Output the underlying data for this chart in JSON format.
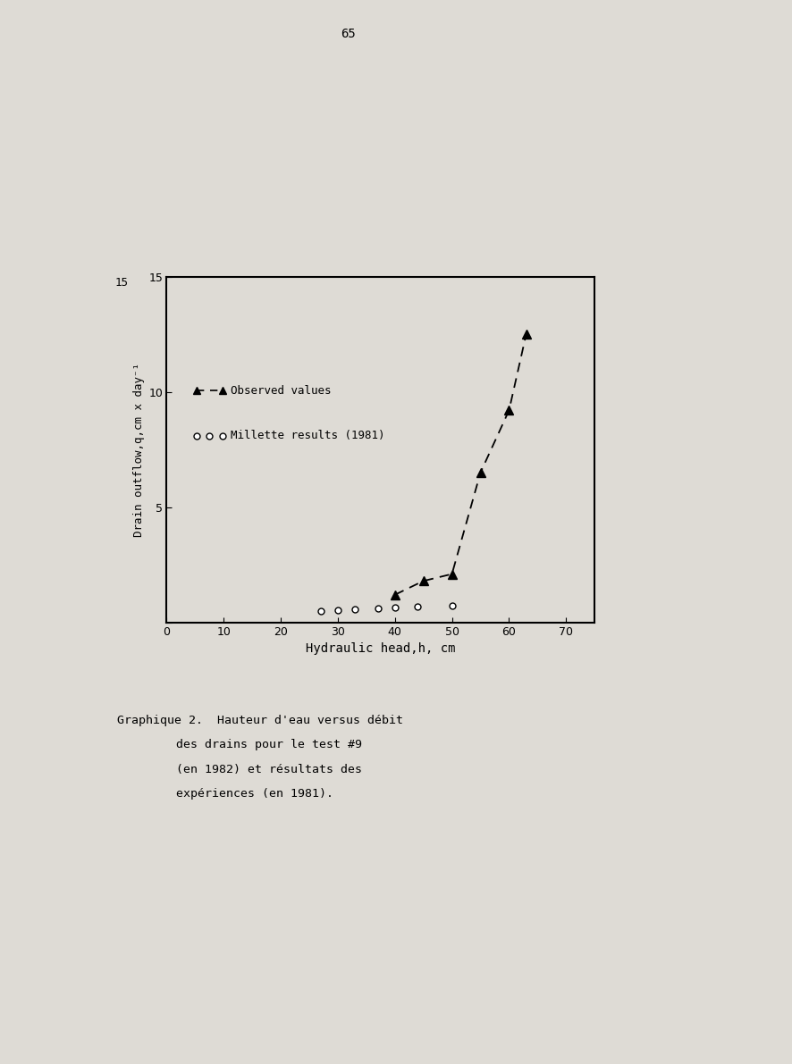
{
  "observed_x": [
    40,
    45,
    50,
    55,
    60,
    63
  ],
  "observed_y": [
    1.2,
    1.8,
    2.1,
    6.5,
    9.2,
    12.5
  ],
  "millette_x": [
    27,
    30,
    33,
    37,
    40,
    44,
    50
  ],
  "millette_y": [
    0.5,
    0.55,
    0.58,
    0.62,
    0.65,
    0.68,
    0.72
  ],
  "xlabel": "Hydraulic head,h, cm",
  "ylabel": "Drain outflow,q,cm x day⁻¹",
  "xlim": [
    0,
    75
  ],
  "ylim": [
    0,
    15
  ],
  "xticks": [
    0,
    10,
    20,
    30,
    40,
    50,
    60,
    70
  ],
  "ytick_vals": [
    5,
    10,
    15
  ],
  "ytick_labels": [
    "5",
    "10",
    "15"
  ],
  "page_color": "#dedbd5",
  "plot_bg_color": "#dedbd5",
  "caption_line1": "Graphique 2.  Hauteur d'eau versus débit",
  "caption_line2": "des drains pour le test #9",
  "caption_line3": "(en 1982) et résultats des",
  "caption_line4": "expériences (en 1981).",
  "page_number": "65"
}
